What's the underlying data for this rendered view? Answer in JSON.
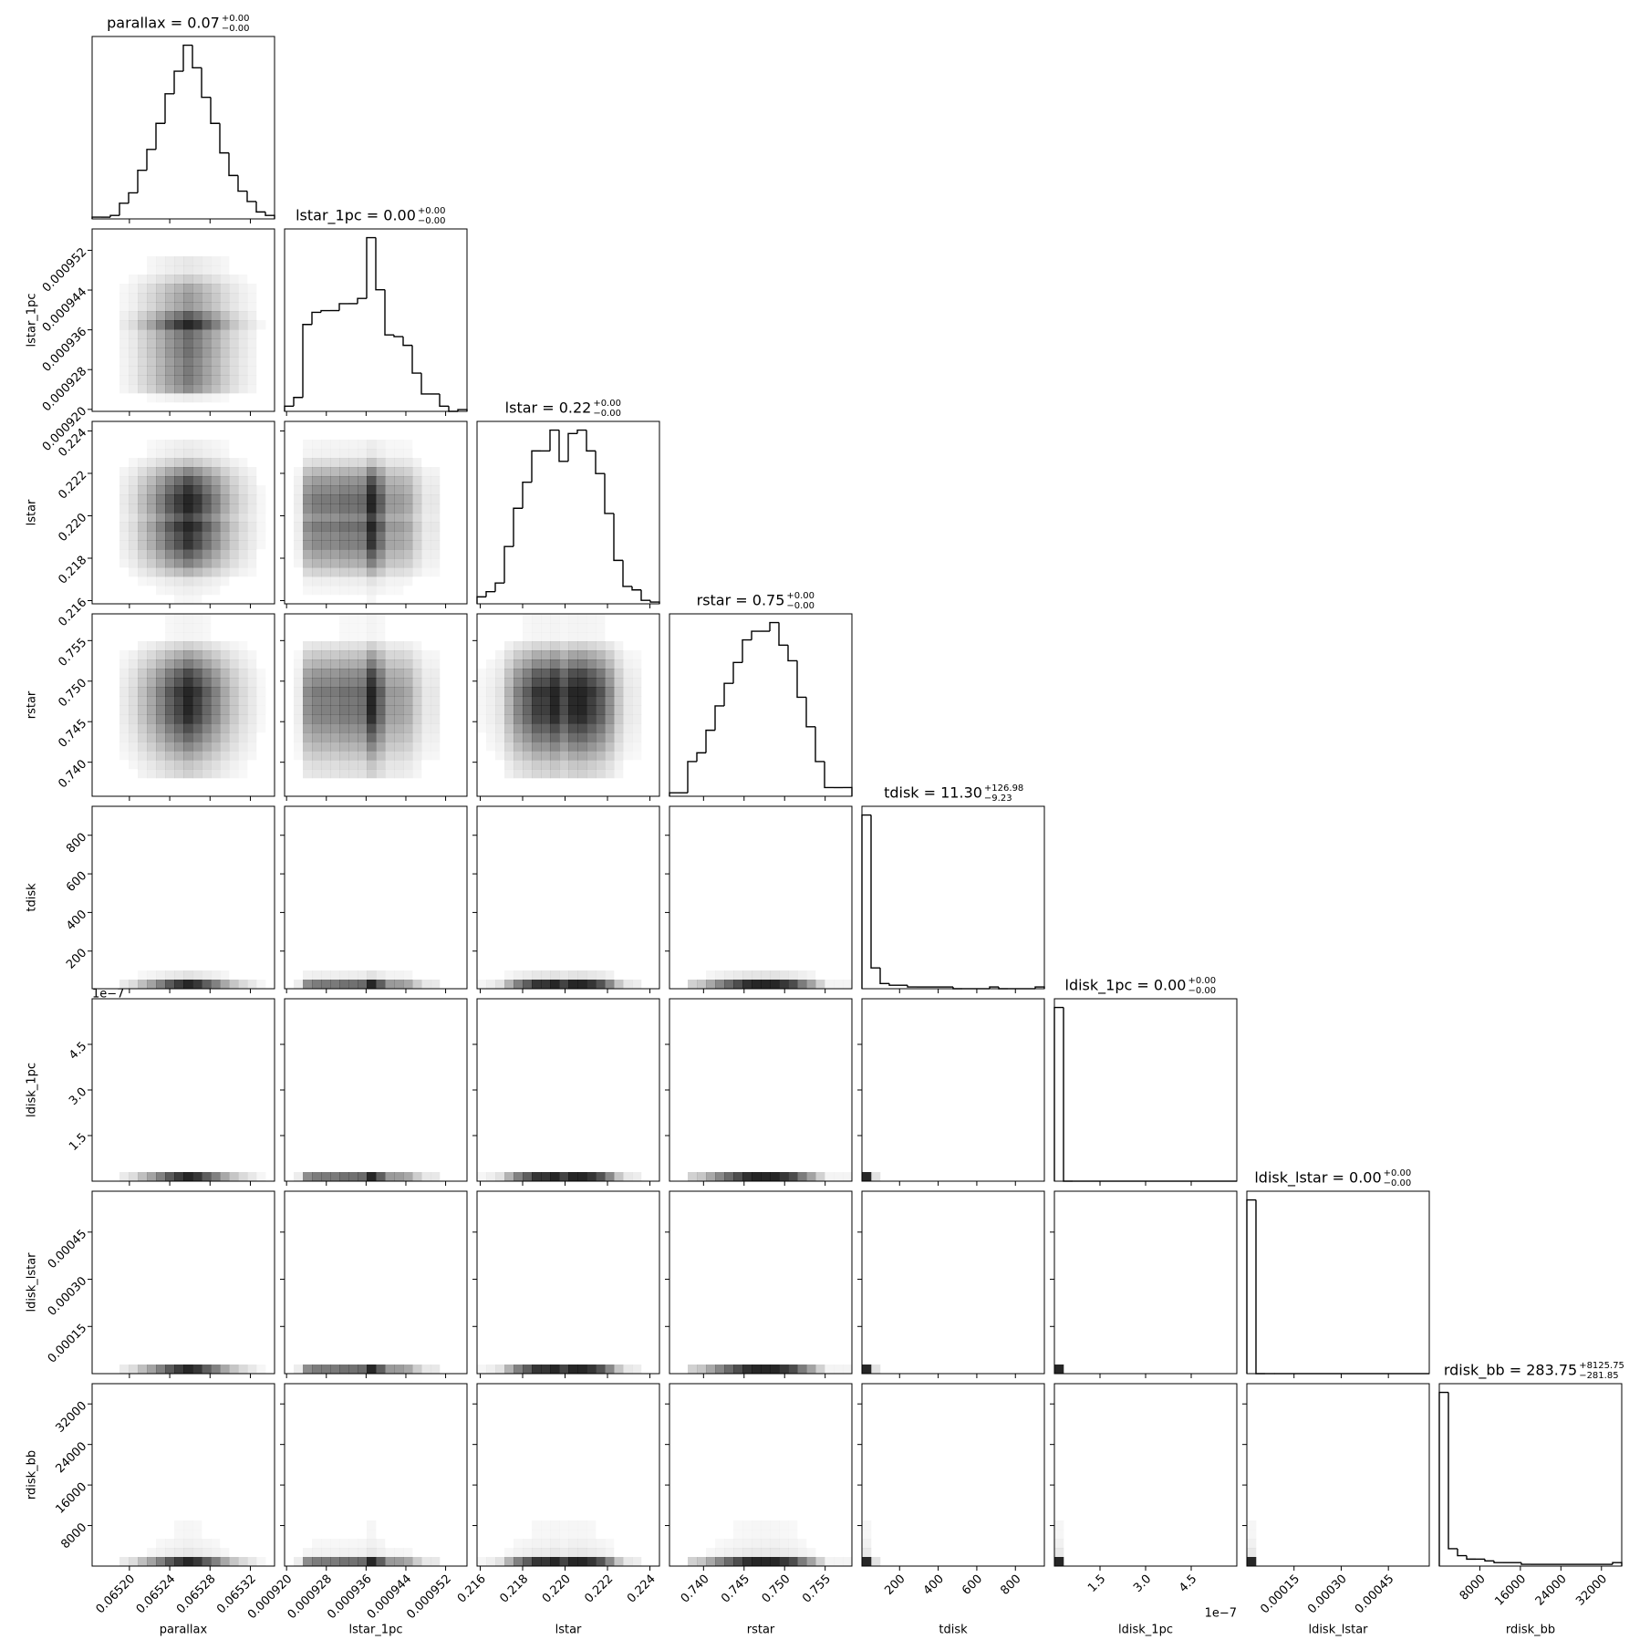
{
  "chart_data": {
    "type": "corner",
    "color": "#000000",
    "params": [
      {
        "name": "parallax",
        "title": {
          "text": "parallax = 0.07",
          "plus": "+0.00",
          "minus": "−0.00"
        },
        "xlim": [
          0.065163,
          0.065344
        ],
        "ticks": [
          {
            "value": 0.0652,
            "label": "0.06520"
          },
          0.06524,
          0.06528,
          0.06532
        ],
        "counts": [
          1,
          1,
          2,
          9,
          15,
          28,
          40,
          55,
          72,
          85,
          100,
          87,
          70,
          55,
          38,
          25,
          16,
          10,
          4,
          2
        ]
      },
      {
        "name": "lstar_1pc",
        "title": {
          "text": "lstar_1pc = 0.00",
          "plus": "+0.00",
          "minus": "−0.00"
        },
        "xlim": [
          0.0009196,
          0.0009563
        ],
        "ticks": [
          {
            "value": 0.00092,
            "label": "0.000920"
          },
          0.000928,
          0.000936,
          0.000944,
          0.000952
        ],
        "counts": [
          3,
          8,
          50,
          57,
          58,
          58,
          62,
          62,
          65,
          100,
          70,
          44,
          43,
          38,
          22,
          10,
          10,
          3,
          0,
          1
        ]
      },
      {
        "name": "lstar",
        "title": {
          "text": "lstar = 0.22",
          "plus": "+0.00",
          "minus": "−0.00"
        },
        "xlim": [
          0.21585,
          0.22445
        ],
        "ticks": [
          0.216,
          0.218,
          {
            "value": 0.22,
            "label": "0.220"
          },
          0.222,
          0.224
        ],
        "counts": [
          4,
          7,
          12,
          33,
          55,
          70,
          88,
          88,
          100,
          82,
          98,
          100,
          88,
          75,
          52,
          25,
          10,
          8,
          2,
          1
        ]
      },
      {
        "name": "rstar",
        "title": {
          "text": "rstar = 0.75",
          "plus": "+0.00",
          "minus": "−0.00"
        },
        "xlim": [
          0.7358,
          0.7583
        ],
        "ticks": [
          {
            "value": 0.74,
            "label": "0.740"
          },
          0.745,
          {
            "value": 0.75,
            "label": "0.750"
          },
          0.755
        ],
        "counts": [
          2,
          2,
          20,
          25,
          38,
          52,
          65,
          77,
          90,
          95,
          95,
          100,
          87,
          78,
          57,
          40,
          20,
          5,
          5,
          5
        ]
      },
      {
        "name": "tdisk",
        "title": {
          "text": "tdisk = 11.30",
          "plus": "+126.98",
          "minus": "−9.23"
        },
        "xlim": [
          5,
          950
        ],
        "ticks": [
          200,
          400,
          600,
          800
        ],
        "counts": [
          100,
          12,
          3,
          2,
          2,
          1,
          1,
          1,
          1,
          1,
          0,
          0,
          0,
          0,
          1,
          0,
          0,
          0,
          0,
          1
        ]
      },
      {
        "name": "ldisk_1pc",
        "title": {
          "text": "ldisk_1pc = 0.00",
          "plus": "+0.00",
          "minus": "−0.00"
        },
        "xlim": [
          0,
          6e-07
        ],
        "offset": "1e−7",
        "ticks": [
          {
            "value": 1.5e-07,
            "label": "1.5"
          },
          {
            "value": 3e-07,
            "label": "3.0"
          },
          {
            "value": 4.5e-07,
            "label": "4.5"
          }
        ],
        "counts": [
          100,
          0,
          0,
          0,
          0,
          0,
          0,
          0,
          0,
          0,
          0,
          0,
          0,
          0,
          0,
          0,
          0,
          0,
          0,
          0
        ]
      },
      {
        "name": "ldisk_lstar",
        "title": {
          "text": "ldisk_lstar = 0.00",
          "plus": "+0.00",
          "minus": "−0.00"
        },
        "xlim": [
          0,
          0.00058
        ],
        "ticks": [
          0.00015,
          {
            "value": 0.0003,
            "label": "0.00030"
          },
          0.00045
        ],
        "counts": [
          100,
          0,
          0,
          0,
          0,
          0,
          0,
          0,
          0,
          0,
          0,
          0,
          0,
          0,
          0,
          0,
          0,
          0,
          0,
          0
        ]
      },
      {
        "name": "rdisk_bb",
        "title": {
          "text": "rdisk_bb = 283.75",
          "plus": "+8125.75",
          "minus": "−281.85"
        },
        "xlim": [
          0,
          36000
        ],
        "ticks": [
          8000,
          16000,
          24000,
          32000
        ],
        "counts": [
          100,
          10,
          6,
          4,
          4,
          3,
          2,
          2,
          2,
          1,
          1,
          1,
          1,
          1,
          1,
          1,
          1,
          1,
          1,
          2
        ]
      }
    ]
  }
}
